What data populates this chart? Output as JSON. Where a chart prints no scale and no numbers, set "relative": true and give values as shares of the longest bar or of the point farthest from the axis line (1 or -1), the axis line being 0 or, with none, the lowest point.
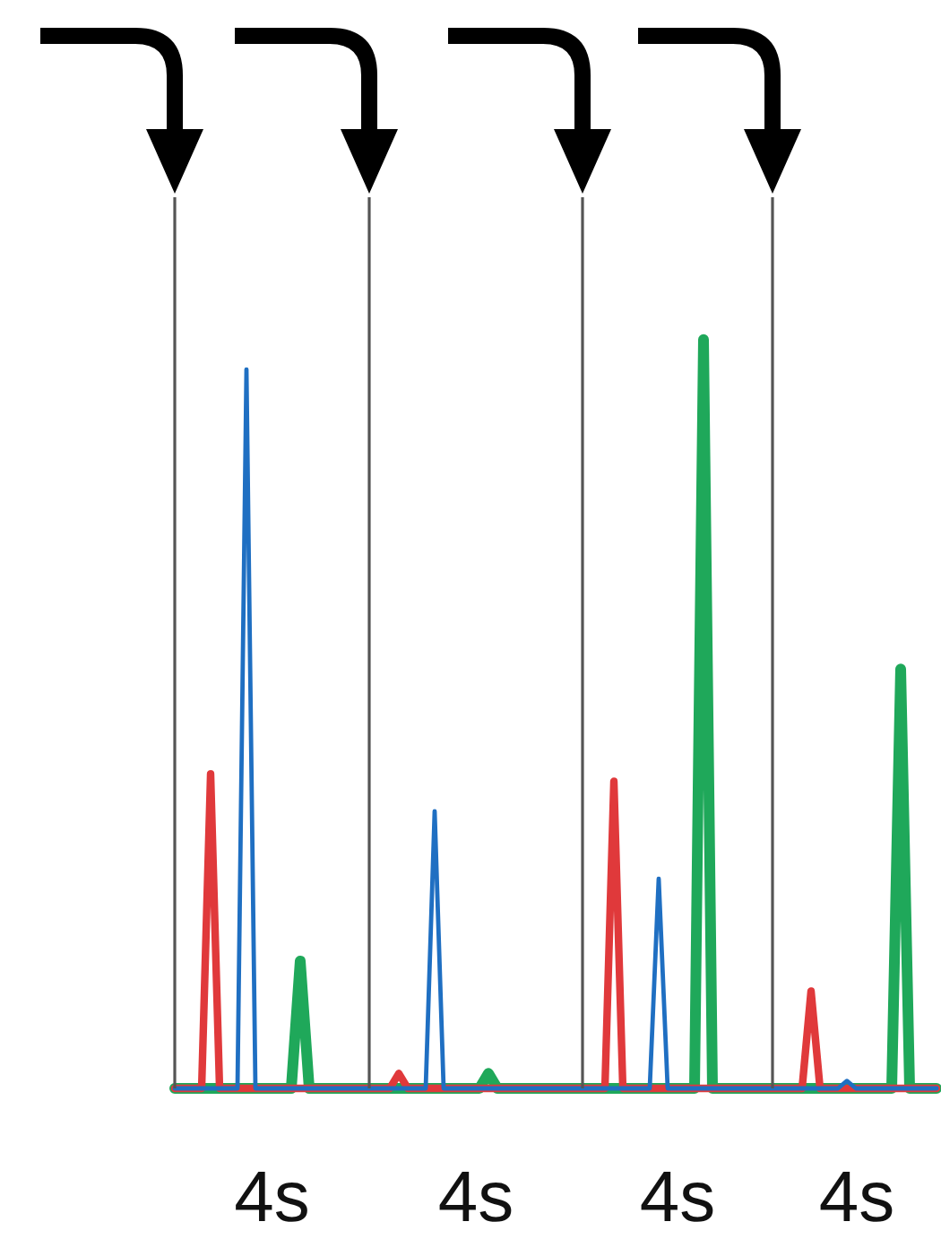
{
  "chart_data": {
    "type": "line",
    "relative": true,
    "tick_labels": false,
    "categories": [
      null,
      null,
      null,
      null,
      null,
      null,
      null,
      null,
      null,
      null,
      null,
      null,
      null,
      null,
      null,
      null,
      null,
      null,
      null,
      null,
      null,
      null,
      null,
      null,
      null,
      null,
      null,
      null,
      null,
      null,
      null,
      null,
      null,
      null,
      null,
      null,
      null,
      null,
      null,
      null,
      null,
      null,
      null,
      null,
      null,
      null,
      null,
      null,
      null,
      null,
      null,
      null,
      null,
      null,
      null,
      null,
      null,
      null,
      null,
      null,
      null,
      null,
      null,
      null,
      null,
      null,
      null,
      null,
      null,
      null,
      null,
      null,
      null,
      null,
      null,
      null,
      null,
      null,
      null,
      null,
      null,
      null,
      null,
      null,
      null,
      null
    ],
    "series": [
      {
        "color": "#1fa85a",
        "values": [
          0,
          0,
          0,
          0,
          0,
          0,
          0,
          0,
          0,
          0,
          0,
          0,
          0,
          0,
          0.17,
          0,
          0,
          0,
          0,
          0,
          0,
          0,
          0,
          0,
          0,
          0,
          0,
          0,
          0,
          0,
          0,
          0,
          0,
          0,
          0,
          0.02,
          0,
          0,
          0,
          0,
          0,
          0,
          0,
          0,
          0,
          0,
          0,
          0,
          0,
          0,
          0,
          0,
          0,
          0,
          0,
          0,
          0,
          0,
          0,
          1,
          0,
          0,
          0,
          0,
          0,
          0,
          0,
          0,
          0,
          0,
          0,
          0,
          0,
          0,
          0,
          0,
          0,
          0,
          0,
          0,
          0,
          0.56,
          0,
          0,
          0,
          0
        ]
      },
      {
        "color": "#e0393b",
        "values": [
          0,
          0,
          0,
          0,
          0.42,
          0,
          0,
          0,
          0,
          0,
          0,
          0,
          0,
          0,
          0,
          0,
          0,
          0,
          0,
          0,
          0,
          0,
          0,
          0,
          0,
          0.02,
          0,
          0,
          0,
          0,
          0,
          0,
          0,
          0,
          0,
          0,
          0,
          0,
          0,
          0,
          0,
          0,
          0,
          0,
          0,
          0,
          0,
          0,
          0,
          0.41,
          0,
          0,
          0,
          0,
          0,
          0,
          0,
          0,
          0,
          0,
          0,
          0,
          0,
          0,
          0,
          0,
          0,
          0,
          0,
          0,
          0,
          0.13,
          0,
          0,
          0,
          0,
          0,
          0,
          0,
          0,
          0,
          0,
          0,
          0,
          0,
          0
        ]
      },
      {
        "color": "#1f6fc2",
        "values": [
          0,
          0,
          0,
          0,
          0,
          0,
          0,
          0,
          0.96,
          0,
          0,
          0,
          0,
          0,
          0,
          0,
          0,
          0,
          0,
          0,
          0,
          0,
          0,
          0,
          0,
          0,
          0,
          0,
          0,
          0.37,
          0,
          0,
          0,
          0,
          0,
          0,
          0,
          0,
          0,
          0,
          0,
          0,
          0,
          0,
          0,
          0,
          0,
          0,
          0,
          0,
          0,
          0,
          0,
          0,
          0.28,
          0,
          0,
          0,
          0,
          0,
          0,
          0,
          0,
          0,
          0,
          0,
          0,
          0,
          0,
          0,
          0,
          0,
          0,
          0,
          0,
          0.01,
          0,
          0,
          0,
          0,
          0,
          0,
          0,
          0,
          0,
          0
        ]
      }
    ],
    "annotations": [
      "4s",
      "4s",
      "4s",
      "4s"
    ]
  }
}
